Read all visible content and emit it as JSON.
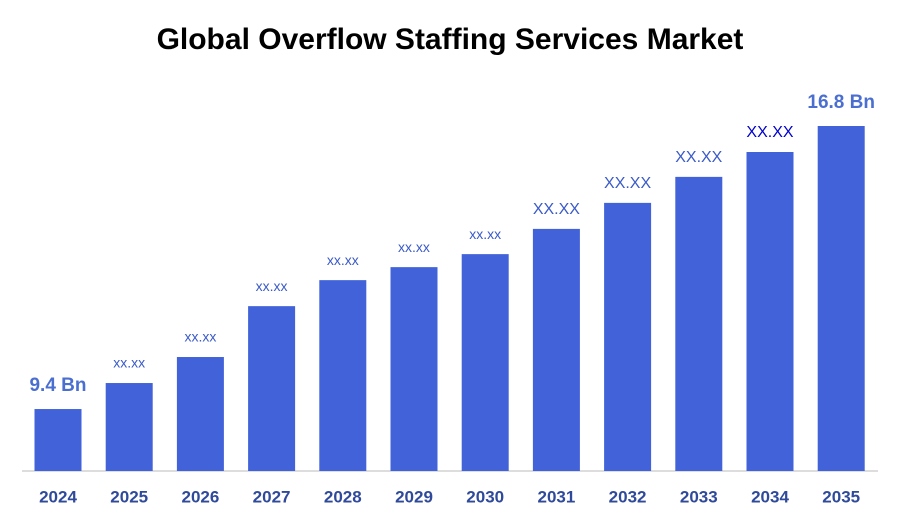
{
  "chart_data": {
    "type": "bar",
    "title": "Global Overflow Staffing Services Market",
    "categories": [
      "2024",
      "2025",
      "2026",
      "2027",
      "2028",
      "2029",
      "2030",
      "2031",
      "2032",
      "2033",
      "2034",
      "2035"
    ],
    "values": [
      9.4,
      10.08,
      10.76,
      12.09,
      12.77,
      13.11,
      13.45,
      14.11,
      14.79,
      15.47,
      16.12,
      16.8
    ],
    "value_labels": [
      "9.4 Bn",
      "xx.xx",
      "xx.xx",
      "xx.xx",
      "xx.xx",
      "xx.xx",
      "xx.xx",
      "XX.XX",
      "XX.XX",
      "XX.XX",
      "XX.XX",
      "16.8 Bn"
    ],
    "color": "#4162d8",
    "ylim": [
      7.78,
      16.8
    ]
  }
}
